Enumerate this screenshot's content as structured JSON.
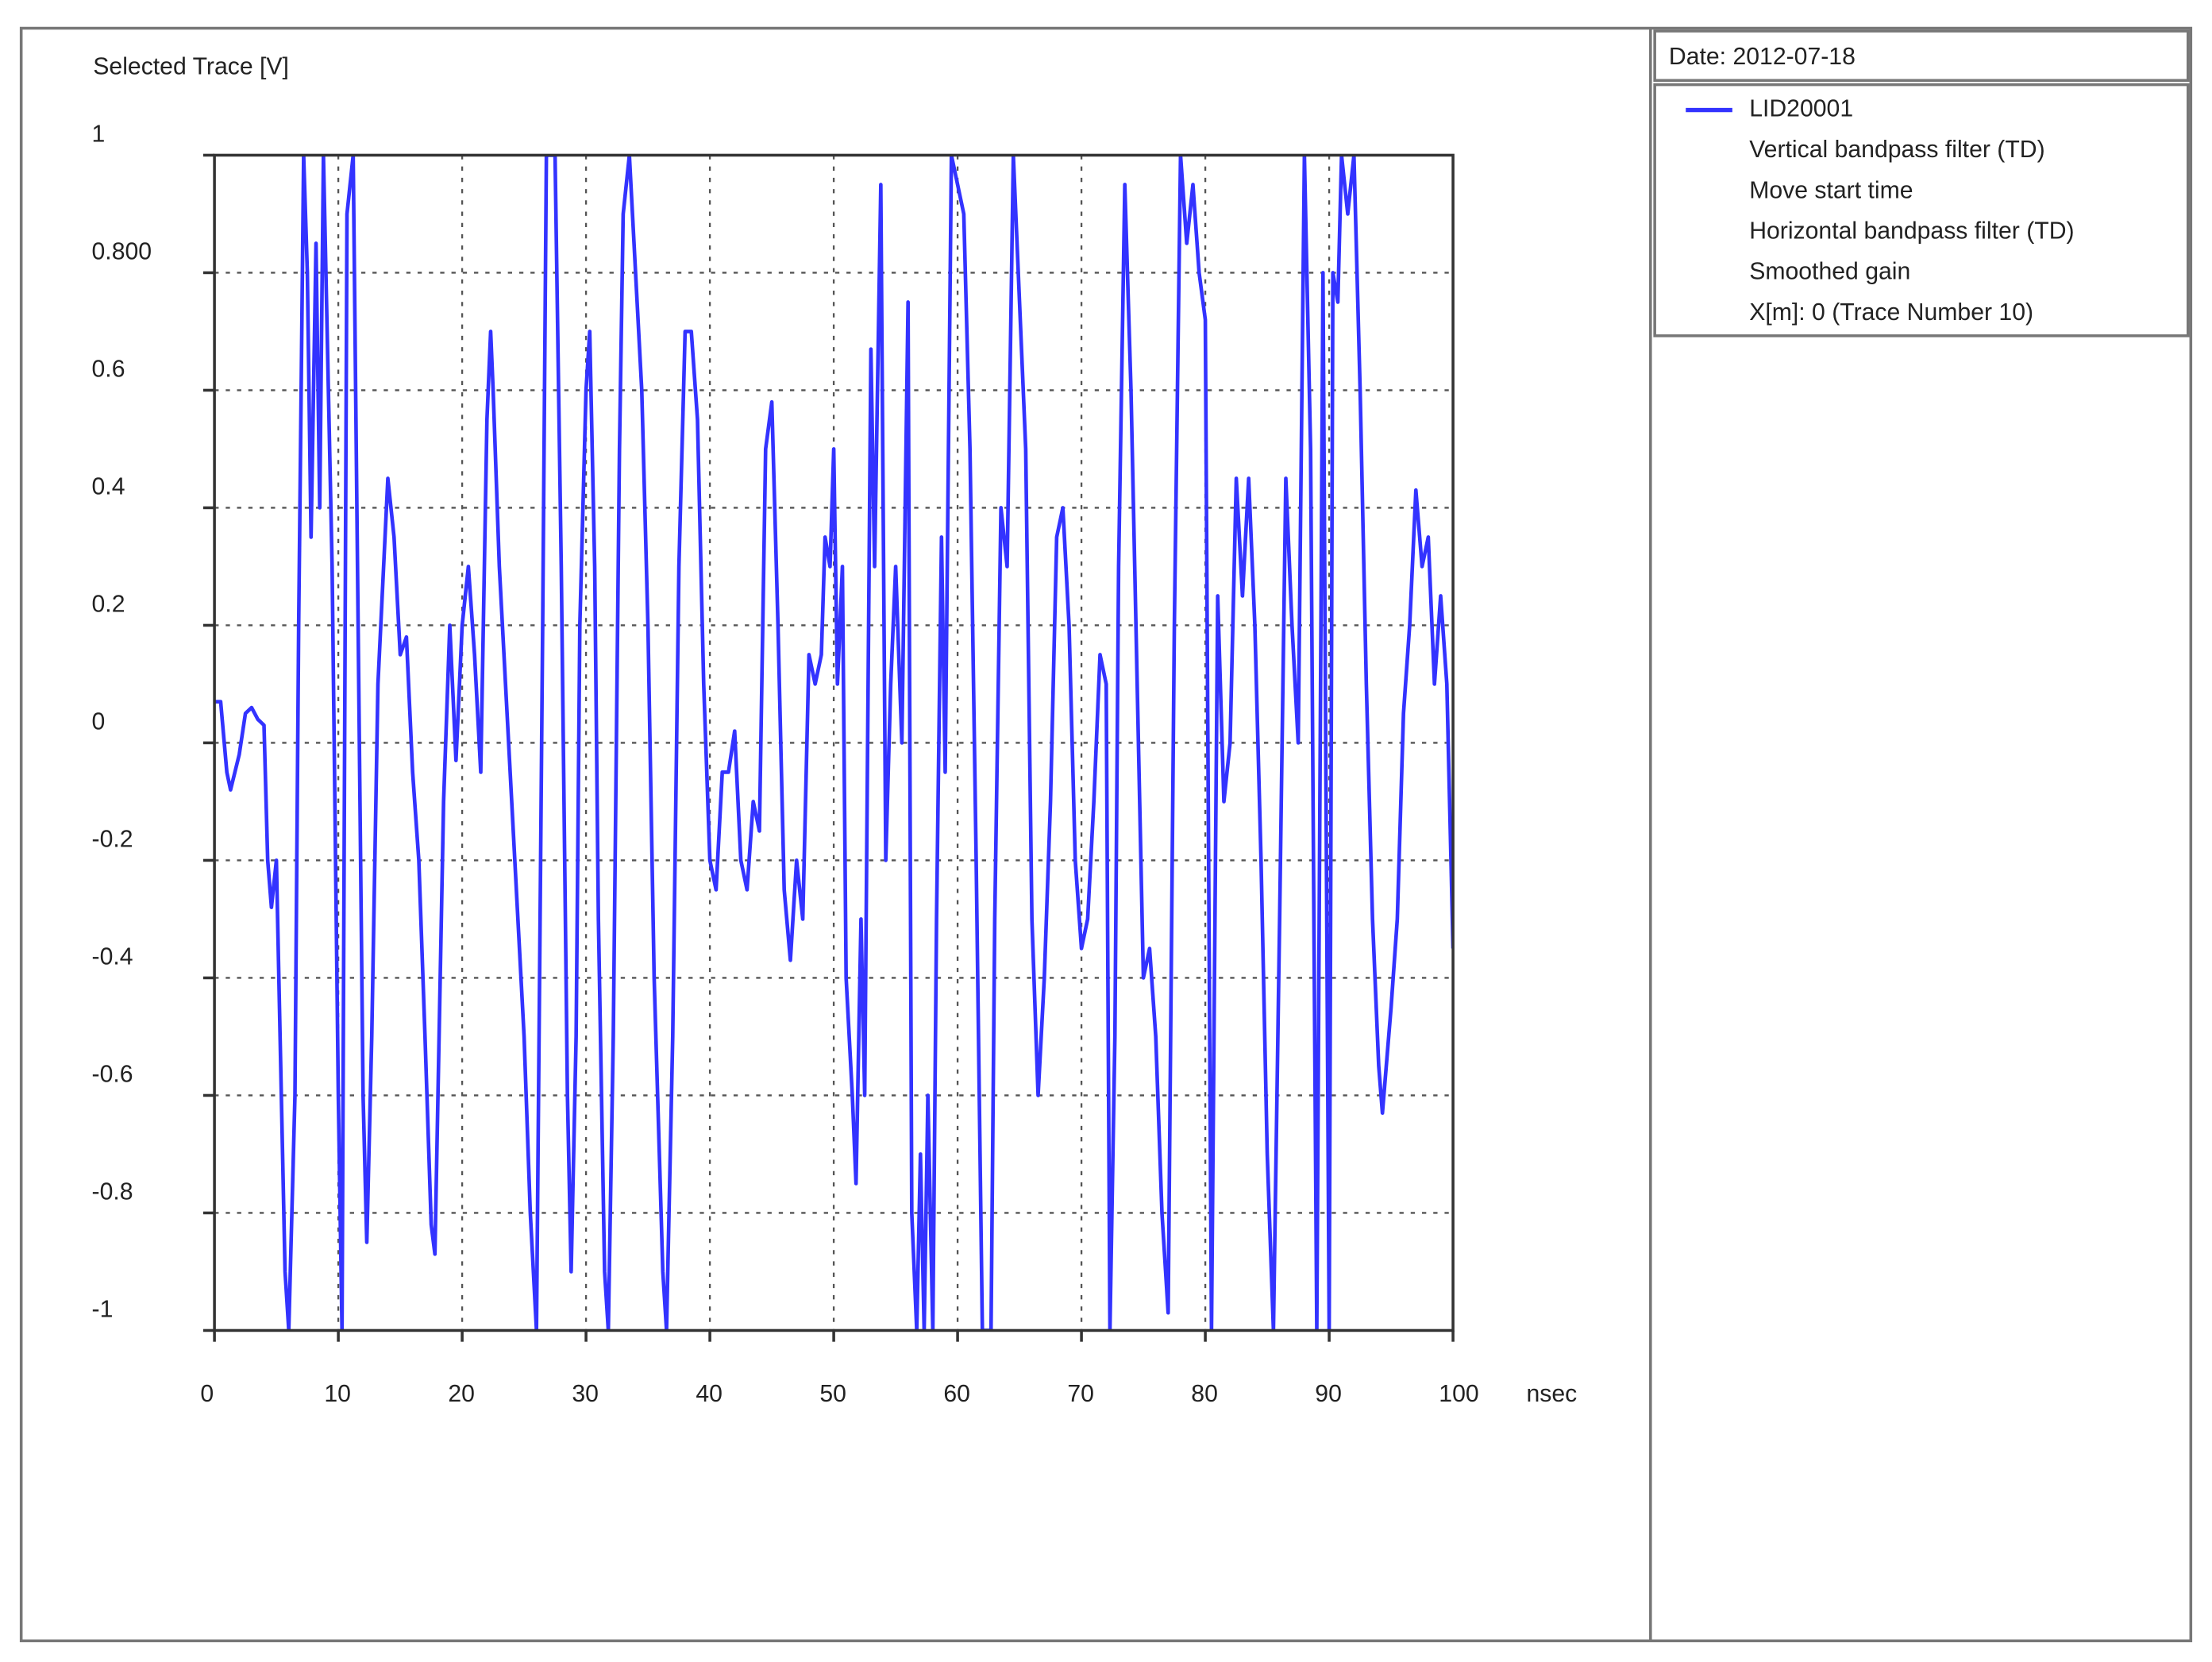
{
  "chart_data": {
    "type": "line",
    "y_title": "Selected Trace [V]",
    "x_title": "nsec",
    "date": "Date: 2012-07-18",
    "legend_notes": [
      "Vertical bandpass filter (TD)",
      "Move start time",
      "Horizontal bandpass filter (TD)",
      "Smoothed gain",
      "X[m]: 0 (Trace Number 10)"
    ],
    "grid": true,
    "xlim": [
      0,
      100
    ],
    "xticks": [
      0,
      10,
      20,
      30,
      40,
      50,
      60,
      70,
      80,
      90,
      100
    ],
    "ylim": [
      -1,
      1
    ],
    "yticks": [
      1,
      {
        "value": 0.8,
        "label": "0.800"
      },
      0.6,
      0.4,
      0.2,
      0,
      -0.2,
      -0.4,
      -0.6,
      -0.8,
      -1
    ],
    "x": [
      0,
      0.5,
      1,
      1.3,
      2,
      2.5,
      3,
      3.5,
      4,
      4.3,
      4.6,
      5,
      5.3,
      5.7,
      6,
      6.5,
      6.8,
      7.2,
      7.5,
      7.8,
      8.2,
      8.5,
      8.8,
      9.5,
      10,
      10.3,
      10.7,
      11.2,
      11.5,
      12,
      12.3,
      12.7,
      13.2,
      14,
      14.5,
      15,
      15.5,
      16,
      16.5,
      17,
      17.5,
      17.8,
      18.5,
      19,
      19.5,
      20,
      20.5,
      21,
      21.5,
      22,
      22.3,
      22.5,
      23,
      24,
      25,
      25.5,
      26,
      26.5,
      26.8,
      27.5,
      28,
      28.5,
      28.8,
      29.2,
      29.5,
      30,
      30.3,
      30.7,
      31,
      31.5,
      31.8,
      32.2,
      32.7,
      33,
      33.5,
      34.5,
      35,
      35.5,
      36.2,
      36.5,
      37,
      37.5,
      38,
      38.5,
      39,
      39.5,
      40,
      40.5,
      41,
      41.5,
      42,
      42.5,
      43,
      43.5,
      44,
      44.5,
      45,
      45.5,
      46,
      46.5,
      47,
      47.5,
      48,
      48.5,
      49,
      49.3,
      49.7,
      50,
      50.3,
      50.7,
      51,
      51.5,
      51.8,
      52.2,
      52.5,
      53,
      53.3,
      53.8,
      54.2,
      54.6,
      55,
      55.5,
      56,
      56.3,
      56.7,
      57,
      57.3,
      57.6,
      58,
      58.3,
      58.7,
      59,
      59.5,
      60.5,
      61,
      61.5,
      62,
      62.7,
      63,
      63.5,
      64,
      64.5,
      65.5,
      66,
      66.5,
      67,
      67.5,
      68,
      68.5,
      69,
      69.5,
      70,
      70.5,
      71,
      71.5,
      72,
      72.3,
      72.7,
      73,
      73.5,
      74,
      74.5,
      75,
      75.5,
      76,
      76.5,
      77,
      77.5,
      78,
      78.5,
      79,
      79.5,
      80,
      80.5,
      81,
      81.5,
      82,
      82.5,
      83,
      83.5,
      84,
      84.5,
      85,
      85.5,
      86,
      86.5,
      87,
      87.5,
      88,
      88.5,
      89,
      89.5,
      90,
      90.3,
      90.7,
      91,
      91.5,
      92,
      92.5,
      93,
      93.5,
      94,
      94.3,
      95,
      95.5,
      96,
      96.5,
      97,
      97.5,
      98,
      98.5,
      99,
      99.5,
      100
    ],
    "series": [
      {
        "name": "LID20001",
        "color": "#3333ff",
        "values": [
          0.07,
          0.07,
          -0.05,
          -0.08,
          -0.02,
          0.05,
          0.06,
          0.04,
          0.03,
          -0.2,
          -0.28,
          -0.2,
          -0.5,
          -0.9,
          -1,
          -0.6,
          0.2,
          1,
          0.8,
          0.35,
          0.85,
          0.4,
          1,
          0.3,
          -0.6,
          -1,
          0.9,
          1,
          0.4,
          -0.6,
          -0.85,
          -0.5,
          0.1,
          0.45,
          0.35,
          0.15,
          0.18,
          -0.05,
          -0.2,
          -0.5,
          -0.82,
          -0.87,
          -0.1,
          0.2,
          -0.03,
          0.2,
          0.3,
          0.15,
          -0.05,
          0.55,
          0.7,
          0.6,
          0.3,
          -0.1,
          -0.5,
          -0.8,
          -1,
          0.2,
          1,
          1,
          0.3,
          -0.6,
          -0.9,
          -0.5,
          0.2,
          0.6,
          0.7,
          0.3,
          -0.3,
          -0.9,
          -1,
          -0.5,
          0.5,
          0.9,
          1,
          0.6,
          0.2,
          -0.4,
          -0.9,
          -1,
          -0.5,
          0.3,
          0.7,
          0.7,
          0.55,
          0.1,
          -0.2,
          -0.25,
          -0.05,
          -0.05,
          0.02,
          -0.2,
          -0.25,
          -0.1,
          -0.15,
          0.5,
          0.58,
          0.2,
          -0.25,
          -0.37,
          -0.2,
          -0.3,
          0.15,
          0.1,
          0.15,
          0.35,
          0.3,
          0.5,
          0.1,
          0.3,
          -0.4,
          -0.6,
          -0.75,
          -0.3,
          -0.6,
          0.67,
          0.3,
          0.95,
          -0.2,
          0.1,
          0.3,
          0,
          0.75,
          -0.8,
          -1,
          -0.7,
          -1,
          -0.6,
          -1,
          -0.3,
          0.35,
          -0.05,
          1,
          0.9,
          0.5,
          -0.2,
          -1,
          -1,
          -0.3,
          0.4,
          0.3,
          1,
          0.5,
          -0.3,
          -0.6,
          -0.4,
          -0.1,
          0.35,
          0.4,
          0.2,
          -0.2,
          -0.35,
          -0.3,
          -0.1,
          0.15,
          0.1,
          -1,
          -0.5,
          0.3,
          0.95,
          0.6,
          0.1,
          -0.4,
          -0.35,
          -0.5,
          -0.8,
          -0.97,
          0.2,
          1,
          0.85,
          0.95,
          0.8,
          0.72,
          -1,
          0.25,
          -0.1,
          0,
          0.45,
          0.25,
          0.45,
          0.2,
          -0.2,
          -0.7,
          -1,
          -0.3,
          0.45,
          0.2,
          0,
          1,
          0.5,
          -1,
          0.8,
          -1,
          0.8,
          0.75,
          1,
          0.9,
          1,
          0.6,
          0.1,
          -0.3,
          -0.55,
          -0.63,
          -0.45,
          -0.3,
          0.05,
          0.2,
          0.43,
          0.3,
          0.35,
          0.1,
          0.25,
          0.1,
          -0.35
        ]
      }
    ]
  }
}
